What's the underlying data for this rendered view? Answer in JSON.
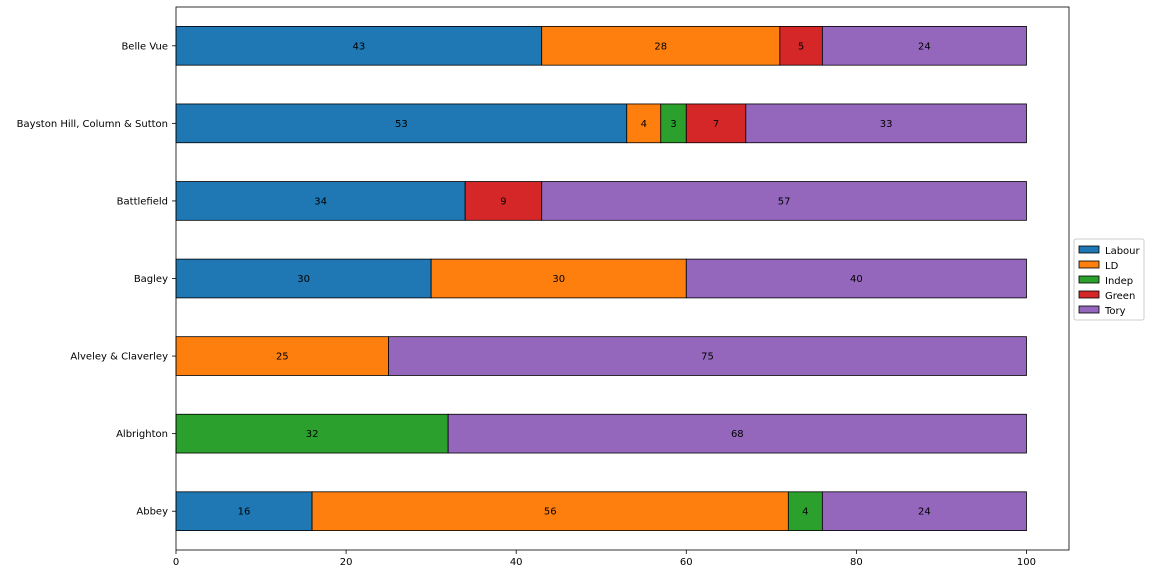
{
  "chart_data": {
    "type": "bar",
    "orientation": "horizontal",
    "stacked": true,
    "categories": [
      "Abbey",
      "Albrighton",
      "Alveley & Claverley",
      "Bagley",
      "Battlefield",
      "Bayston Hill, Column & Sutton",
      "Belle Vue"
    ],
    "series": [
      {
        "name": "Labour",
        "color": "#1f77b4",
        "values": [
          16,
          0,
          0,
          30,
          34,
          53,
          43
        ]
      },
      {
        "name": "LD",
        "color": "#ff7f0e",
        "values": [
          56,
          0,
          25,
          30,
          0,
          4,
          28
        ]
      },
      {
        "name": "Indep",
        "color": "#2ca02c",
        "values": [
          4,
          32,
          0,
          0,
          0,
          3,
          0
        ]
      },
      {
        "name": "Green",
        "color": "#d62728",
        "values": [
          0,
          0,
          0,
          0,
          9,
          7,
          5
        ]
      },
      {
        "name": "Tory",
        "color": "#9467bd",
        "values": [
          24,
          68,
          75,
          40,
          57,
          33,
          24
        ]
      }
    ],
    "xlim": [
      0,
      105
    ],
    "xticks": [
      0,
      20,
      40,
      60,
      80,
      100
    ],
    "title": "",
    "xlabel": "",
    "ylabel": "",
    "grid": false,
    "legend_position": "center-right"
  }
}
